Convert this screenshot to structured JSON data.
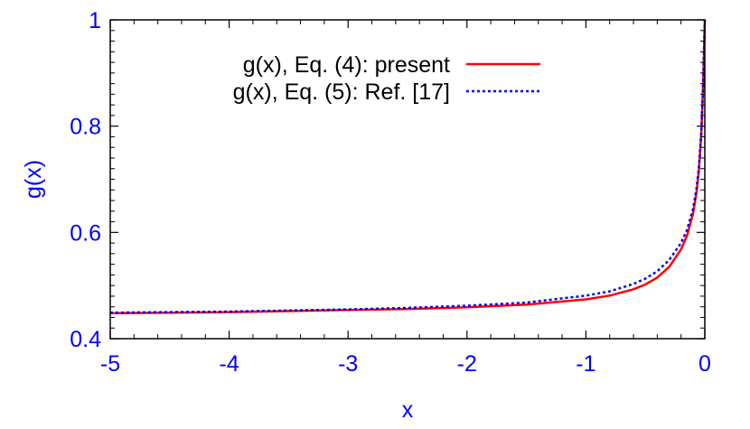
{
  "chart_data": {
    "type": "line",
    "title": "",
    "xlabel": "x",
    "ylabel": "g(x)",
    "xlim": [
      -5,
      0
    ],
    "ylim": [
      0.4,
      1.0
    ],
    "xticks": [
      -5,
      -4,
      -3,
      -2,
      -1,
      0
    ],
    "xtick_labels": [
      "-5",
      "-4",
      "-3",
      "-2",
      "-1",
      "0"
    ],
    "yticks": [
      0.4,
      0.6,
      0.8,
      1.0
    ],
    "ytick_labels": [
      "0.4",
      "0.6",
      "0.8",
      "1"
    ],
    "grid": false,
    "legend_position": "top-right",
    "series": [
      {
        "name": "g(x), Eq. (4):  present",
        "color": "#ff0000",
        "style": "solid",
        "x": [
          -5,
          -4.5,
          -4,
          -3.5,
          -3,
          -2.5,
          -2,
          -1.5,
          -1,
          -0.8,
          -0.6,
          -0.5,
          -0.4,
          -0.3,
          -0.2,
          -0.15,
          -0.1,
          -0.07,
          -0.05,
          -0.03,
          -0.015,
          0
        ],
        "y": [
          0.448,
          0.449,
          0.45,
          0.452,
          0.454,
          0.456,
          0.459,
          0.464,
          0.474,
          0.481,
          0.493,
          0.502,
          0.515,
          0.535,
          0.568,
          0.594,
          0.634,
          0.675,
          0.716,
          0.785,
          0.87,
          1.0
        ]
      },
      {
        "name": "g(x), Eq. (5):  Ref. [17]",
        "color": "#0000ff",
        "style": "dotted",
        "x": [
          -5,
          -4.5,
          -4,
          -3.5,
          -3,
          -2.5,
          -2,
          -1.5,
          -1,
          -0.8,
          -0.6,
          -0.5,
          -0.4,
          -0.3,
          -0.2,
          -0.15,
          -0.1,
          -0.07,
          -0.05,
          -0.03,
          -0.015,
          0
        ],
        "y": [
          0.449,
          0.45,
          0.451,
          0.453,
          0.455,
          0.458,
          0.462,
          0.468,
          0.481,
          0.489,
          0.503,
          0.513,
          0.527,
          0.548,
          0.58,
          0.605,
          0.643,
          0.682,
          0.722,
          0.789,
          0.872,
          1.0
        ]
      }
    ]
  }
}
